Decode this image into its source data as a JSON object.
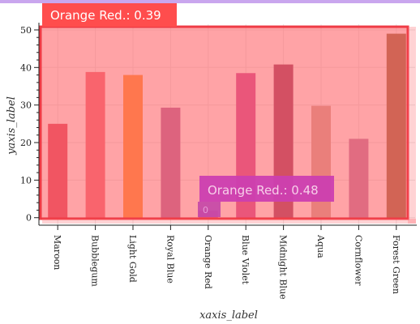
{
  "chart_data": {
    "type": "bar",
    "categories": [
      "Maroon",
      "Bubblegum",
      "Light Gold",
      "Royal Blue",
      "Orange Red",
      "Blue Violet",
      "Midnight Blue",
      "Aqua",
      "Cornflower",
      "Forest Green"
    ],
    "values": [
      25,
      38.8,
      38,
      29.3,
      1.9,
      38.5,
      40.8,
      29.8,
      21,
      49
    ],
    "colors": [
      "#d9344e",
      "#f0596b",
      "#ff8c1a",
      "#a55796",
      "#c447a8",
      "#c9368d",
      "#8b2650",
      "#c8a08f",
      "#b16f9f",
      "#8a5a2c"
    ],
    "xlabel": "xaxis_label",
    "ylabel": "yaxis_label",
    "ylim": [
      -2,
      51.5
    ],
    "yticks": [
      0,
      10,
      20,
      30,
      40,
      50
    ],
    "grid": true,
    "annotations": [
      {
        "text": "Orange Red.: 0.39",
        "target": "Maroon–Forest Green",
        "color": "#ff4d4d"
      },
      {
        "text": "Orange Red.: 0.48",
        "target": "Orange Red–Blue Violet",
        "color": "#cc3fb0"
      }
    ],
    "overlay_color": "#ff6b70",
    "small_marker_label": "0"
  }
}
